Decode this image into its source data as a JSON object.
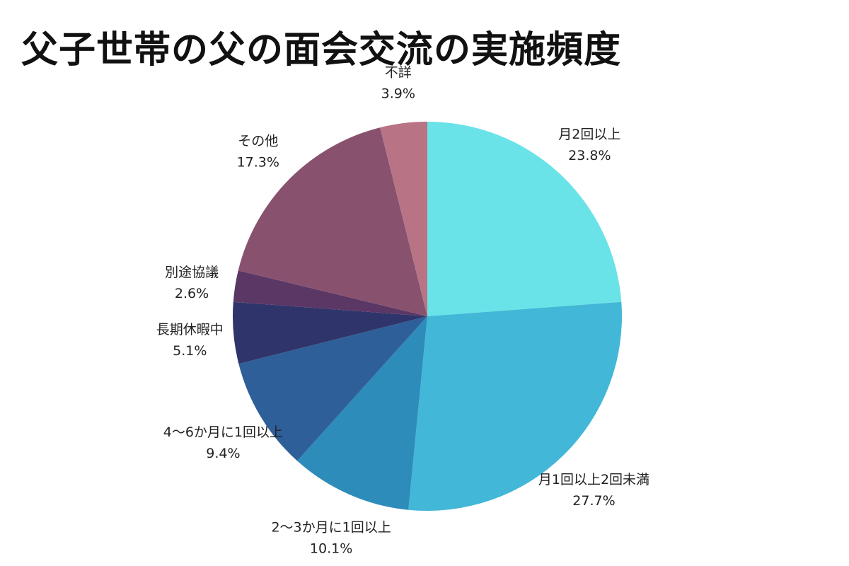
{
  "chart_data": {
    "type": "pie",
    "title": "父子世帯の父の面会交流の実施頻度",
    "slices": [
      {
        "label": "月2回以上",
        "value": 23.8,
        "display": "23.8%",
        "color": "#6ae3e8"
      },
      {
        "label": "月1回以上2回未満",
        "value": 27.7,
        "display": "27.7%",
        "color": "#43b7d7"
      },
      {
        "label": "2〜3か月に1回以上",
        "value": 10.1,
        "display": "10.1%",
        "color": "#2e8cbb"
      },
      {
        "label": "4〜6か月に1回以上",
        "value": 9.4,
        "display": "9.4%",
        "color": "#2e5f99"
      },
      {
        "label": "長期休暇中",
        "value": 5.1,
        "display": "5.1%",
        "color": "#2f356b"
      },
      {
        "label": "別途協議",
        "value": 2.6,
        "display": "2.6%",
        "color": "#5b3766"
      },
      {
        "label": "その他",
        "value": 17.3,
        "display": "17.3%",
        "color": "#88526f"
      },
      {
        "label": "不詳",
        "value": 3.9,
        "display": "3.9%",
        "color": "#b87384"
      }
    ],
    "start_angle": "12 o'clock",
    "direction": "clockwise",
    "legend": "none"
  }
}
